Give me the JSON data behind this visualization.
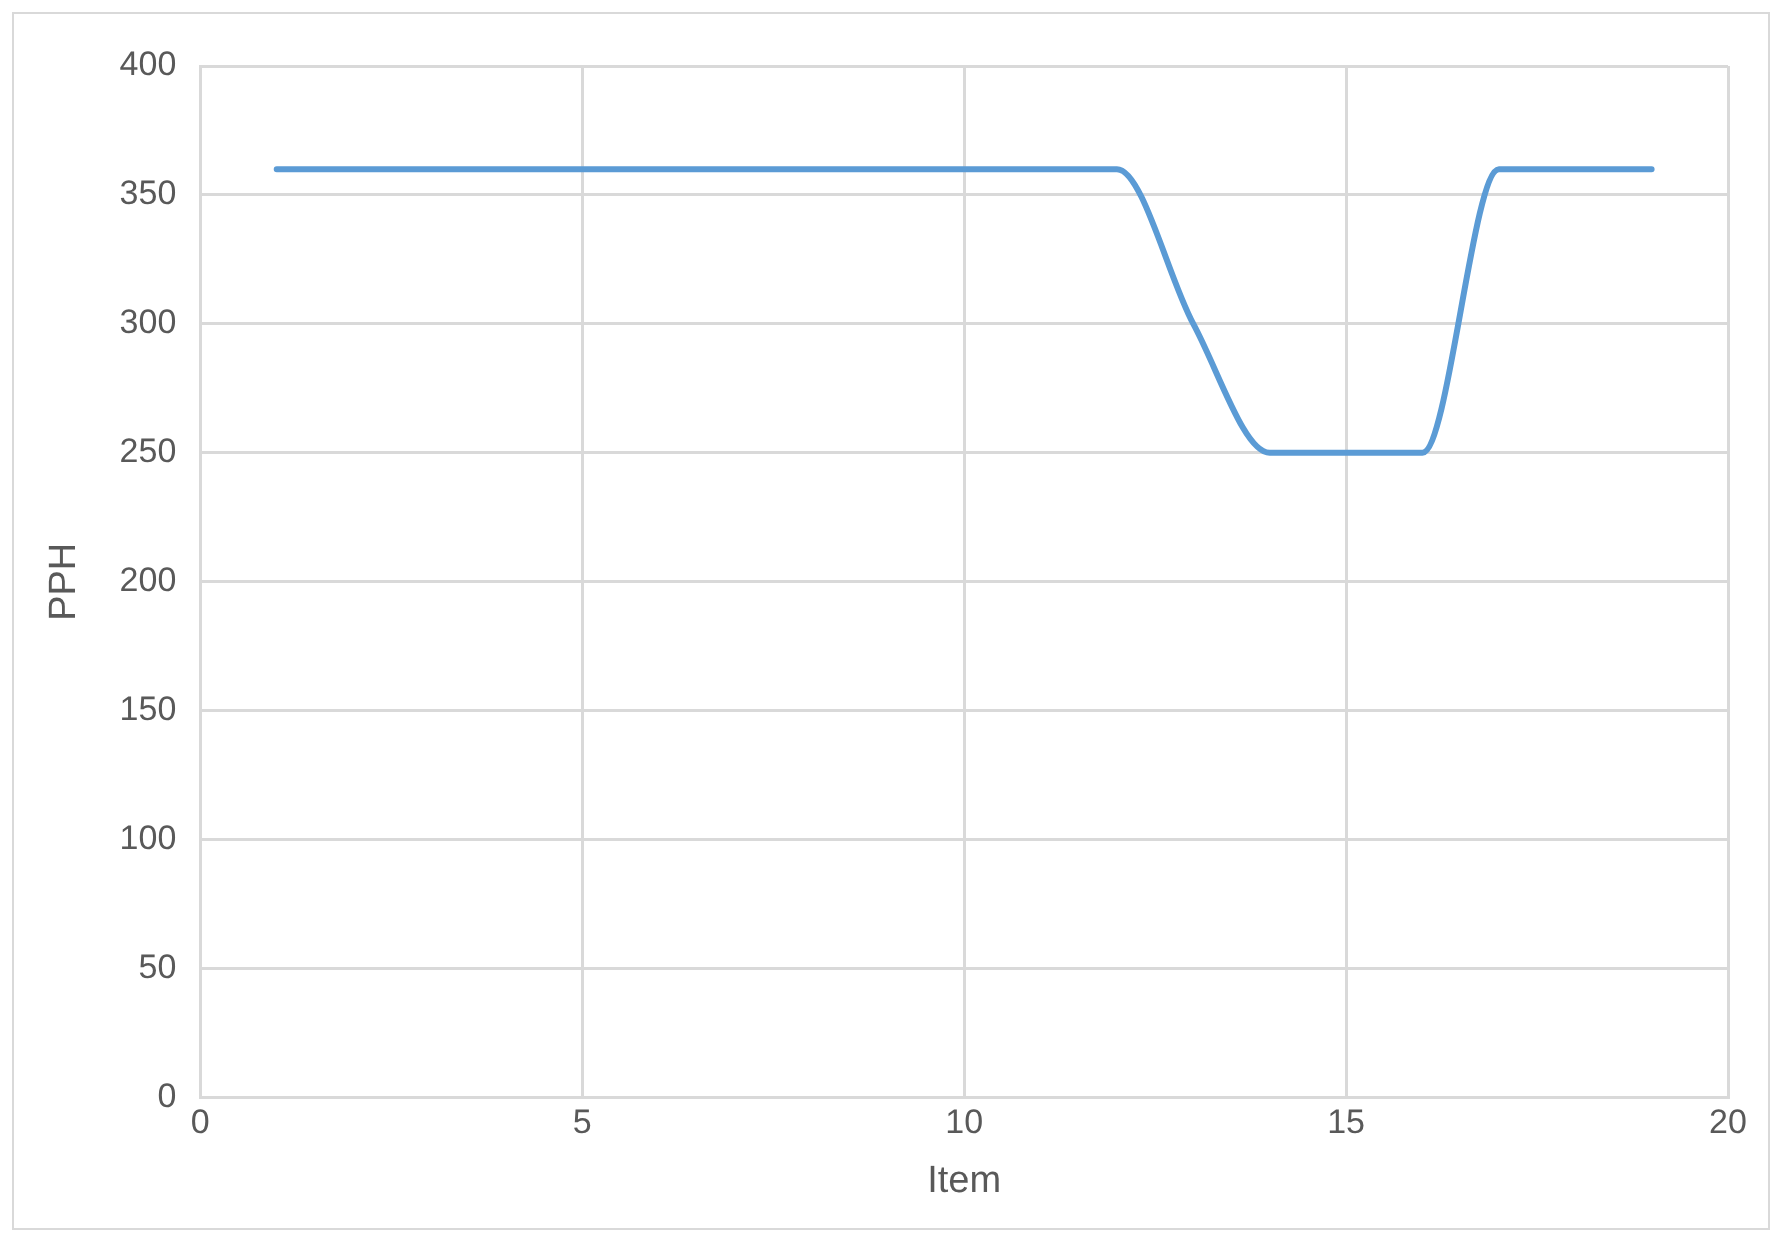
{
  "chart_data": {
    "type": "line",
    "xlabel": "Item",
    "ylabel": "PPH",
    "x": [
      1,
      2,
      3,
      4,
      5,
      6,
      7,
      8,
      9,
      10,
      11,
      12,
      13,
      14,
      15,
      16,
      17,
      18,
      19
    ],
    "series": [
      {
        "color": "#5b9bd5",
        "values": [
          360,
          360,
          360,
          360,
          360,
          360,
          360,
          360,
          360,
          360,
          360,
          360,
          300,
          250,
          250,
          250,
          360,
          360,
          360
        ]
      }
    ],
    "xlim": [
      0,
      20
    ],
    "xticks": [
      0,
      5,
      10,
      15,
      20
    ],
    "ylim": [
      0,
      400
    ],
    "yticks": [
      0,
      50,
      100,
      150,
      200,
      250,
      300,
      350,
      400
    ],
    "grid": true,
    "legend": false,
    "marker": "none",
    "line_style": "solid"
  }
}
